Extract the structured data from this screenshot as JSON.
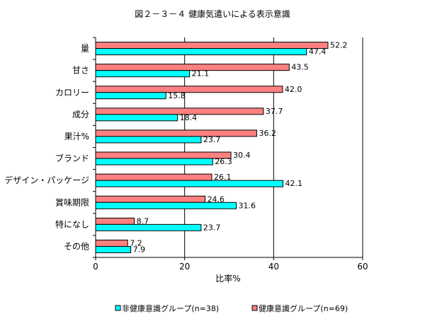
{
  "chart_data": {
    "type": "bar",
    "orientation": "horizontal",
    "title": "図２－３－４ 健康気遣いによる表示意識",
    "xlabel": "比率%",
    "ylabel": "",
    "xlim": [
      0,
      60
    ],
    "xticks": [
      0,
      20,
      40,
      60
    ],
    "grid": true,
    "legend_position": "bottom",
    "categories": [
      "量",
      "甘さ",
      "カロリー",
      "成分",
      "果汁%",
      "ブランド",
      "デザイン・パッケージ",
      "賞味期限",
      "特になし",
      "その他"
    ],
    "series": [
      {
        "name": "健康意識グループ(n=69)",
        "color": "#ff8080",
        "values": [
          52.2,
          43.5,
          42.0,
          37.7,
          36.2,
          30.4,
          26.1,
          24.6,
          8.7,
          7.2
        ],
        "labels": [
          "52.2",
          "43.5",
          "42.0",
          "37.7",
          "36.2",
          "30.4",
          "26.1",
          "24.6",
          "8.7",
          "7.2"
        ]
      },
      {
        "name": "非健康意識グループ(n=38)",
        "color": "#00ffff",
        "values": [
          47.4,
          21.1,
          15.8,
          18.4,
          23.7,
          26.3,
          42.1,
          31.6,
          23.7,
          7.9
        ],
        "labels": [
          "47.4",
          "21.1",
          "15.8",
          "18.4",
          "23.7",
          "26.3",
          "42.1",
          "31.6",
          "23.7",
          "7.9"
        ]
      }
    ],
    "legend_order": [
      1,
      0
    ]
  }
}
